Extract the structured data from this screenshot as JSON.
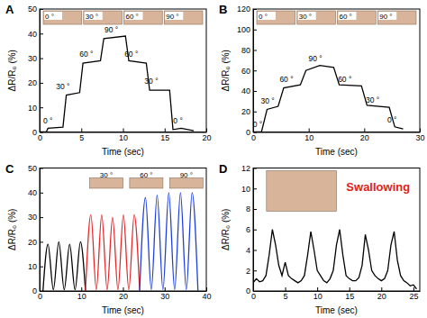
{
  "chart_data": [
    {
      "type": "line",
      "label": "A",
      "x_label": "Time (sec)",
      "y_label": "ΔR/R₀ (%)",
      "xlim": [
        0,
        20
      ],
      "xticks": [
        0,
        5,
        10,
        15,
        20
      ],
      "ylim": [
        0,
        50
      ],
      "yticks": [
        0,
        10,
        20,
        30,
        40,
        50
      ],
      "color": "#000000",
      "x": [
        0,
        0.8,
        1,
        2.8,
        3.2,
        4.8,
        5.2,
        7.3,
        7.7,
        10.3,
        10.7,
        12.8,
        13.2,
        15.6,
        16,
        17,
        18.5
      ],
      "values": [
        0,
        0,
        1.5,
        2,
        15,
        16,
        28,
        29,
        38,
        39,
        29,
        28,
        17,
        17,
        1,
        1.5,
        0.5
      ],
      "inset_labels": [
        "0 °",
        "30 °",
        "60 °",
        "90 °"
      ],
      "annotations": [
        {
          "text": "0 °",
          "x": 1,
          "y": 3.5
        },
        {
          "text": "30 °",
          "x": 2.8,
          "y": 17.5
        },
        {
          "text": "60 °",
          "x": 5.6,
          "y": 30.5
        },
        {
          "text": "90 °",
          "x": 8.6,
          "y": 40.3
        },
        {
          "text": "60 °",
          "x": 11,
          "y": 30.5
        },
        {
          "text": "30 °",
          "x": 13.4,
          "y": 19.5
        },
        {
          "text": "0 °",
          "x": 16.6,
          "y": 3.5
        }
      ]
    },
    {
      "type": "line",
      "label": "B",
      "x_label": "Time (sec)",
      "y_label": "ΔR/R₀ (%)",
      "xlim": [
        0,
        30
      ],
      "xticks": [
        0,
        10,
        20,
        30
      ],
      "ylim": [
        0,
        120
      ],
      "yticks": [
        0,
        20,
        40,
        60,
        80,
        100,
        120
      ],
      "color": "#000000",
      "x": [
        0,
        1.5,
        2.5,
        4.5,
        5.5,
        8.5,
        9.5,
        12,
        14.5,
        15.5,
        19.5,
        20.5,
        24.5,
        25.5,
        27
      ],
      "values": [
        0,
        0,
        22,
        25,
        43,
        46,
        60,
        65,
        63,
        46,
        45,
        26,
        24,
        5,
        3
      ],
      "inset_labels": [
        "0 °",
        "30 °",
        "60 °",
        "90 °"
      ],
      "annotations": [
        {
          "text": "0 °",
          "x": 0.8,
          "y": 5
        },
        {
          "text": "30 °",
          "x": 2.6,
          "y": 28
        },
        {
          "text": "60 °",
          "x": 6,
          "y": 49
        },
        {
          "text": "90 °",
          "x": 11.2,
          "y": 69
        },
        {
          "text": "60 °",
          "x": 16.5,
          "y": 49
        },
        {
          "text": "30 °",
          "x": 21.5,
          "y": 29
        },
        {
          "text": "0 °",
          "x": 25,
          "y": 9
        }
      ]
    },
    {
      "type": "line",
      "label": "C",
      "x_label": "Time (sec)",
      "y_label": "ΔR/R₀ (%)",
      "xlim": [
        0,
        40
      ],
      "xticks": [
        0,
        10,
        20,
        30,
        40
      ],
      "ylim": [
        0,
        50
      ],
      "yticks": [
        0,
        10,
        20,
        30,
        40,
        50
      ],
      "series": [
        {
          "name": "30 °",
          "color": "#000000",
          "x": [
            0.8,
            2,
            3.3,
            4.6,
            5.9,
            7.2,
            8.5,
            9.8,
            11
          ],
          "values": [
            0,
            19,
            0.5,
            20,
            0.5,
            19,
            0.5,
            20,
            0
          ]
        },
        {
          "name": "60 °",
          "color": "#e8262a",
          "x": [
            11,
            12.3,
            13.6,
            14.9,
            16.2,
            17.5,
            18.8,
            20.1,
            21.4,
            22.7,
            24
          ],
          "values": [
            0,
            31,
            0.5,
            31,
            0.5,
            30,
            0.5,
            31,
            0.5,
            31,
            0
          ]
        },
        {
          "name": "90 °",
          "color": "#1f3fdc",
          "x": [
            24,
            25.4,
            26.8,
            28.2,
            29.6,
            31,
            32.4,
            33.8,
            35.2,
            36.6,
            38
          ],
          "values": [
            0,
            38,
            0.5,
            39,
            0.5,
            40,
            0.5,
            40,
            0.5,
            40,
            0
          ]
        }
      ]
    },
    {
      "type": "line",
      "label": "D",
      "x_label": "Time (sec)",
      "y_label": "ΔR/R₀ (%)",
      "xlim": [
        0,
        26
      ],
      "xticks": [
        0,
        5,
        10,
        15,
        20,
        25
      ],
      "ylim": [
        0,
        12
      ],
      "yticks": [
        0,
        2,
        4,
        6,
        8,
        10,
        12
      ],
      "color": "#000000",
      "x": [
        0,
        0.5,
        1,
        1.5,
        2,
        2.5,
        3,
        3.5,
        4,
        4.5,
        5,
        5.5,
        6,
        6.5,
        7,
        7.5,
        8,
        8.5,
        9,
        9.5,
        10,
        10.5,
        11,
        11.5,
        12,
        12.5,
        13,
        13.5,
        14,
        14.5,
        15,
        15.5,
        16,
        16.5,
        17,
        17.5,
        18,
        18.5,
        19,
        19.5,
        20,
        20.5,
        21,
        21.5,
        22,
        22.5,
        23,
        23.5,
        24,
        24.5,
        25,
        25.5
      ],
      "values": [
        0.8,
        1.2,
        0.9,
        1.0,
        1.5,
        3.5,
        6,
        4.5,
        2.5,
        1.5,
        2.8,
        1.5,
        1.2,
        1.0,
        0.8,
        1.0,
        1.5,
        3.5,
        5.8,
        4,
        2,
        1.5,
        1.0,
        0.8,
        1.2,
        2,
        4.5,
        6,
        3.5,
        1.5,
        1.2,
        1.0,
        1.0,
        1.3,
        2.5,
        5.5,
        4,
        2,
        1.5,
        1.2,
        1.0,
        1.2,
        2,
        4.5,
        5.8,
        3,
        1.5,
        1,
        0.8,
        0.5,
        0.6,
        0.2
      ],
      "annotations": [
        {
          "text": "Swallowing",
          "x": 19.5,
          "y": 9.8,
          "color": "#e0201b"
        }
      ]
    }
  ]
}
